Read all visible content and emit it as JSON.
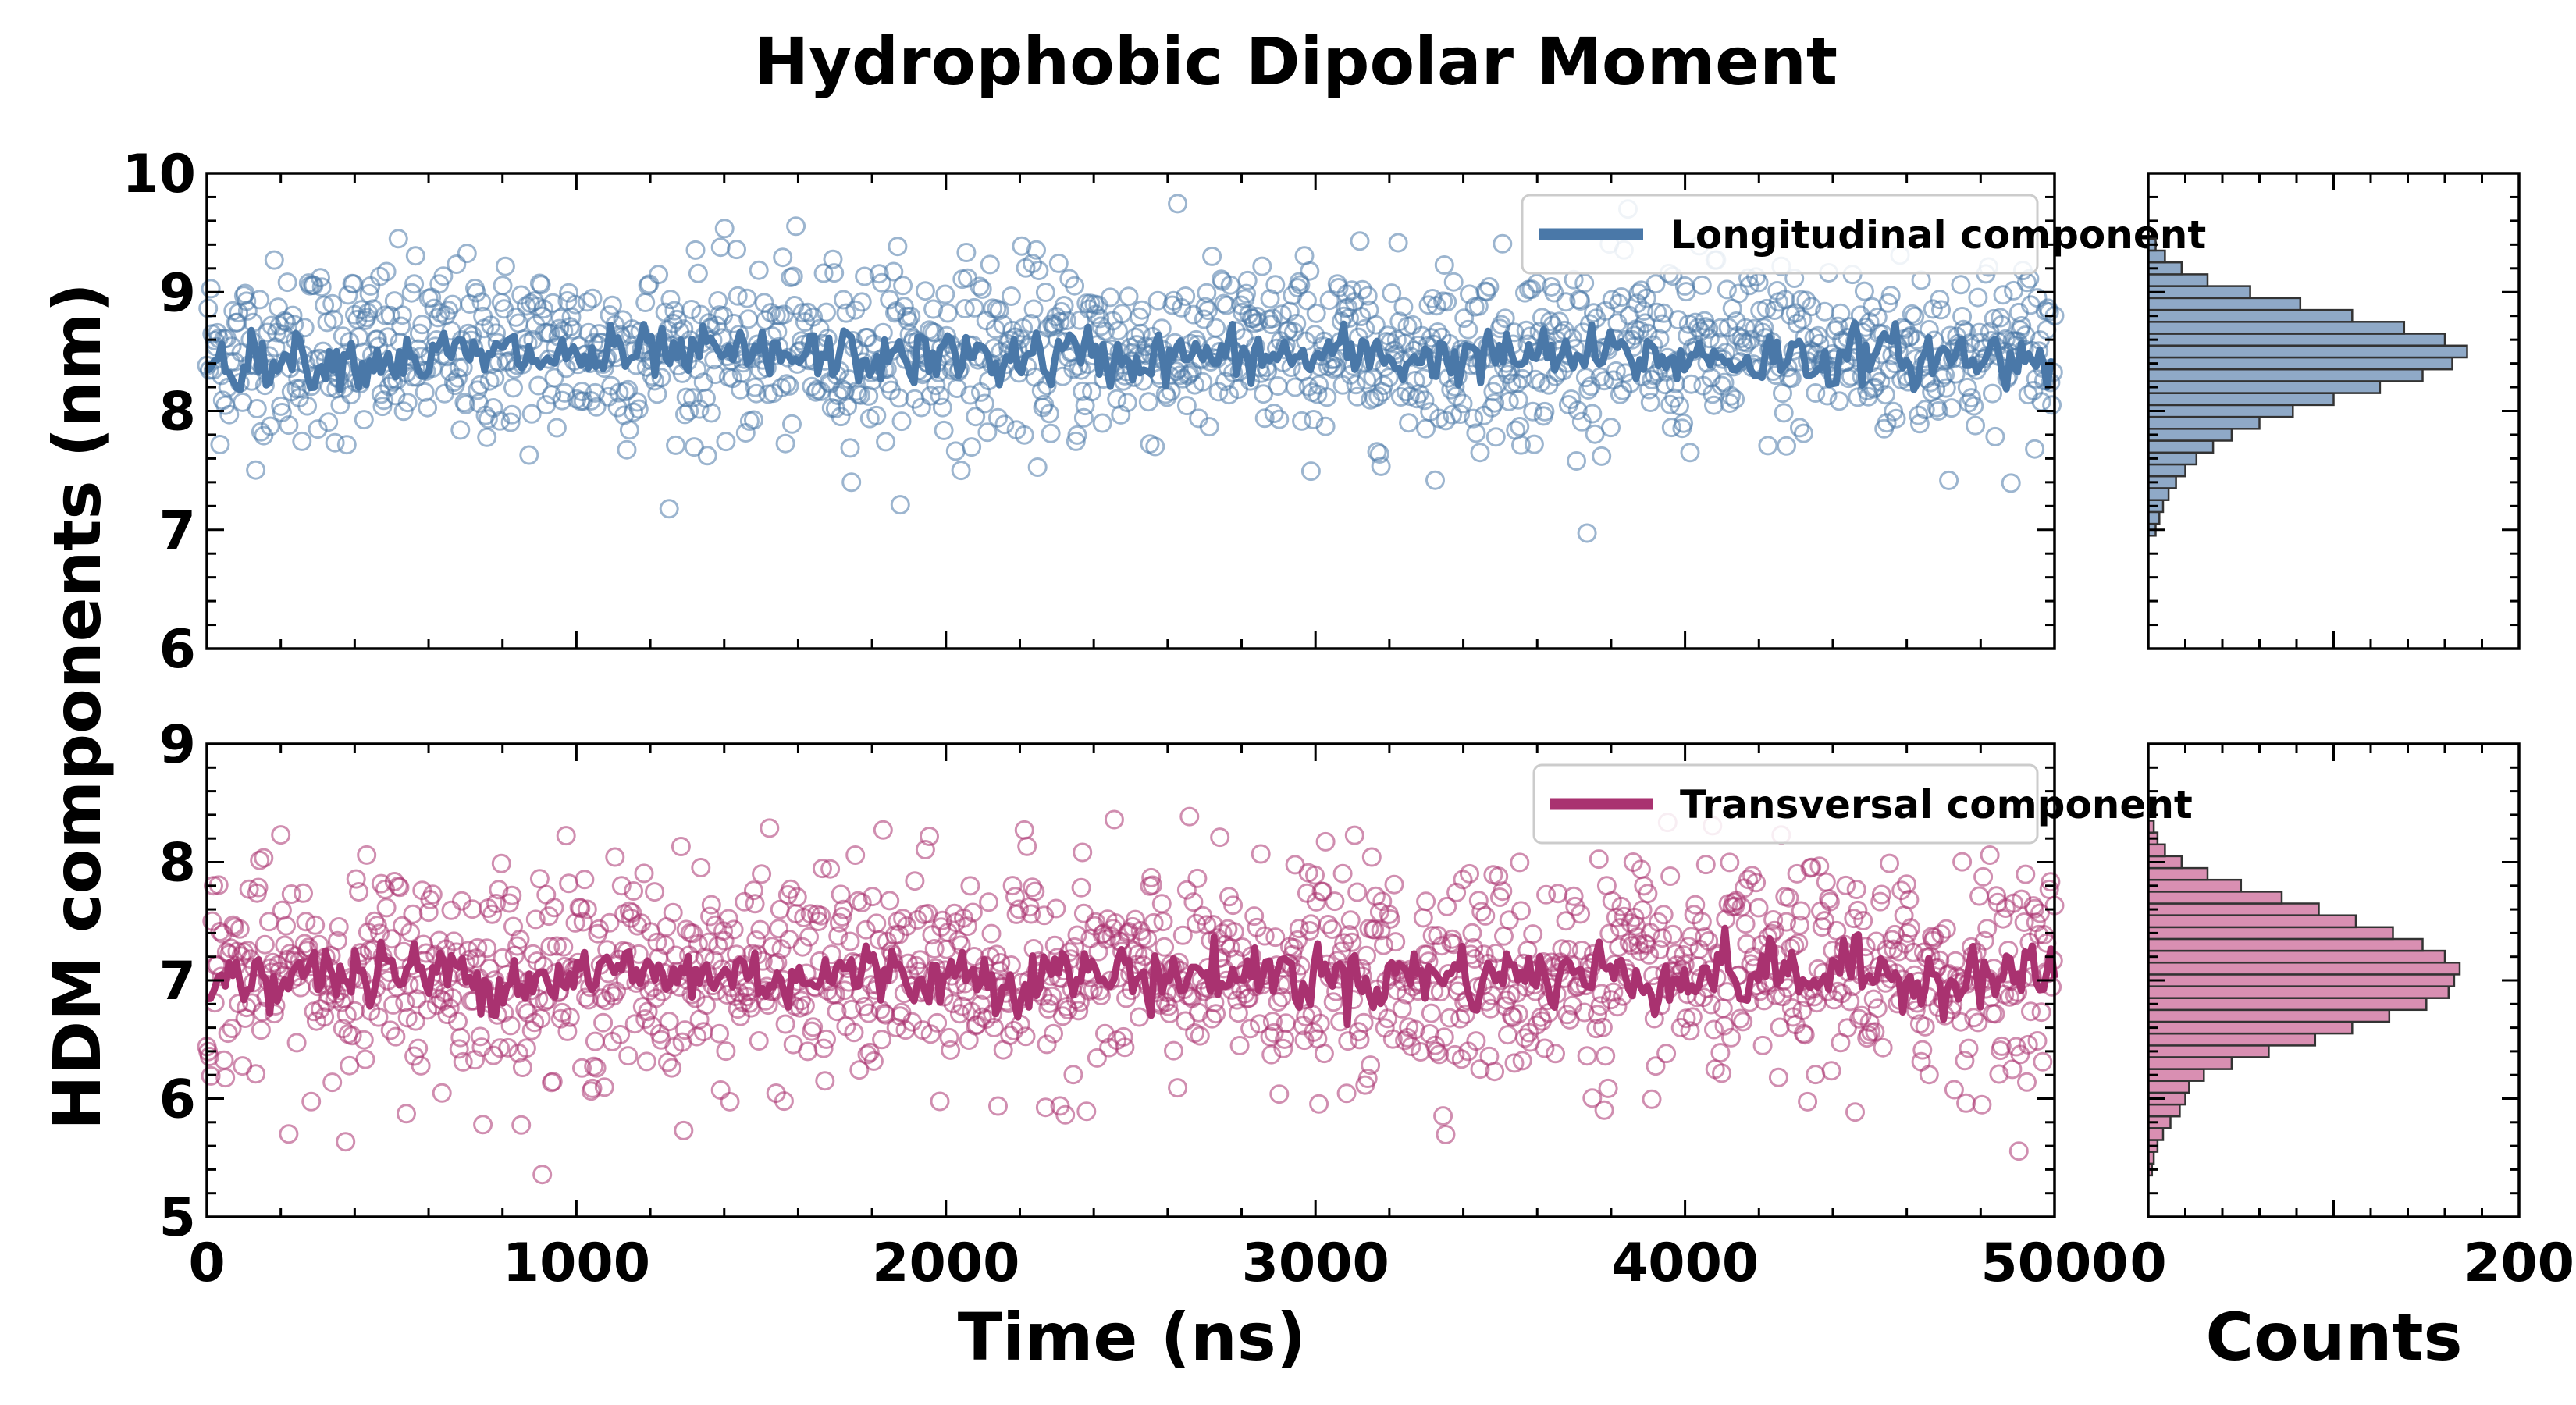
{
  "chart_data": [
    {
      "type": "scatter",
      "title": "Hydrophobic Dipolar Moment",
      "panel": "top-main",
      "xlabel": "",
      "ylabel": "HDM components (nm)",
      "xlim": [
        0,
        5000
      ],
      "ylim": [
        6,
        10
      ],
      "xticks": [
        "0",
        "1000",
        "2000",
        "3000",
        "4000",
        "5000"
      ],
      "yticks": [
        "6",
        "7",
        "8",
        "9",
        "10"
      ],
      "legend_position": "top-right",
      "series": [
        {
          "name": "Longitudinal component",
          "color": "#4a78a8",
          "marker": "open-circle",
          "scatter_mean": 8.5,
          "scatter_sd": 0.38,
          "line_mean": 8.45,
          "line_sd": 0.17
        }
      ]
    },
    {
      "type": "bar",
      "panel": "top-histogram",
      "orientation": "horizontal",
      "xlabel": "",
      "xlim": [
        0,
        200
      ],
      "ylim": [
        6,
        10
      ],
      "color": "#8fa9c7",
      "bin_centers": [
        7.0,
        7.1,
        7.2,
        7.3,
        7.4,
        7.5,
        7.6,
        7.7,
        7.8,
        7.9,
        8.0,
        8.1,
        8.2,
        8.3,
        8.4,
        8.5,
        8.6,
        8.7,
        8.8,
        8.9,
        9.0,
        9.1,
        9.2,
        9.3,
        9.4
      ],
      "counts": [
        4,
        6,
        8,
        11,
        15,
        20,
        26,
        35,
        45,
        60,
        78,
        100,
        125,
        148,
        164,
        172,
        160,
        138,
        110,
        82,
        55,
        32,
        18,
        9,
        4
      ]
    },
    {
      "type": "scatter",
      "panel": "bottom-main",
      "xlabel": "Time (ns)",
      "ylabel": "HDM components (nm)",
      "xlim": [
        0,
        5000
      ],
      "ylim": [
        5,
        9
      ],
      "xticks": [
        "0",
        "1000",
        "2000",
        "3000",
        "4000",
        "5000"
      ],
      "yticks": [
        "5",
        "6",
        "7",
        "8",
        "9"
      ],
      "legend_position": "top-right",
      "series": [
        {
          "name": "Transversal component",
          "color": "#a93270",
          "marker": "open-circle",
          "scatter_mean": 7.05,
          "scatter_sd": 0.45,
          "line_mean": 7.05,
          "line_sd": 0.2
        }
      ]
    },
    {
      "type": "bar",
      "panel": "bottom-histogram",
      "orientation": "horizontal",
      "xlabel": "Counts",
      "xlim": [
        0,
        200
      ],
      "ylim": [
        5,
        9
      ],
      "xticks": [
        "0",
        "200"
      ],
      "color": "#d98fb2",
      "bin_centers": [
        5.4,
        5.5,
        5.6,
        5.7,
        5.8,
        5.9,
        6.0,
        6.1,
        6.2,
        6.3,
        6.4,
        6.5,
        6.6,
        6.7,
        6.8,
        6.9,
        7.0,
        7.1,
        7.2,
        7.3,
        7.4,
        7.5,
        7.6,
        7.7,
        7.8,
        7.9,
        8.0,
        8.1,
        8.2,
        8.3
      ],
      "counts": [
        2,
        3,
        5,
        8,
        12,
        17,
        20,
        22,
        30,
        45,
        65,
        90,
        110,
        130,
        150,
        162,
        165,
        168,
        160,
        148,
        132,
        112,
        92,
        72,
        50,
        32,
        18,
        9,
        5,
        3
      ]
    }
  ]
}
